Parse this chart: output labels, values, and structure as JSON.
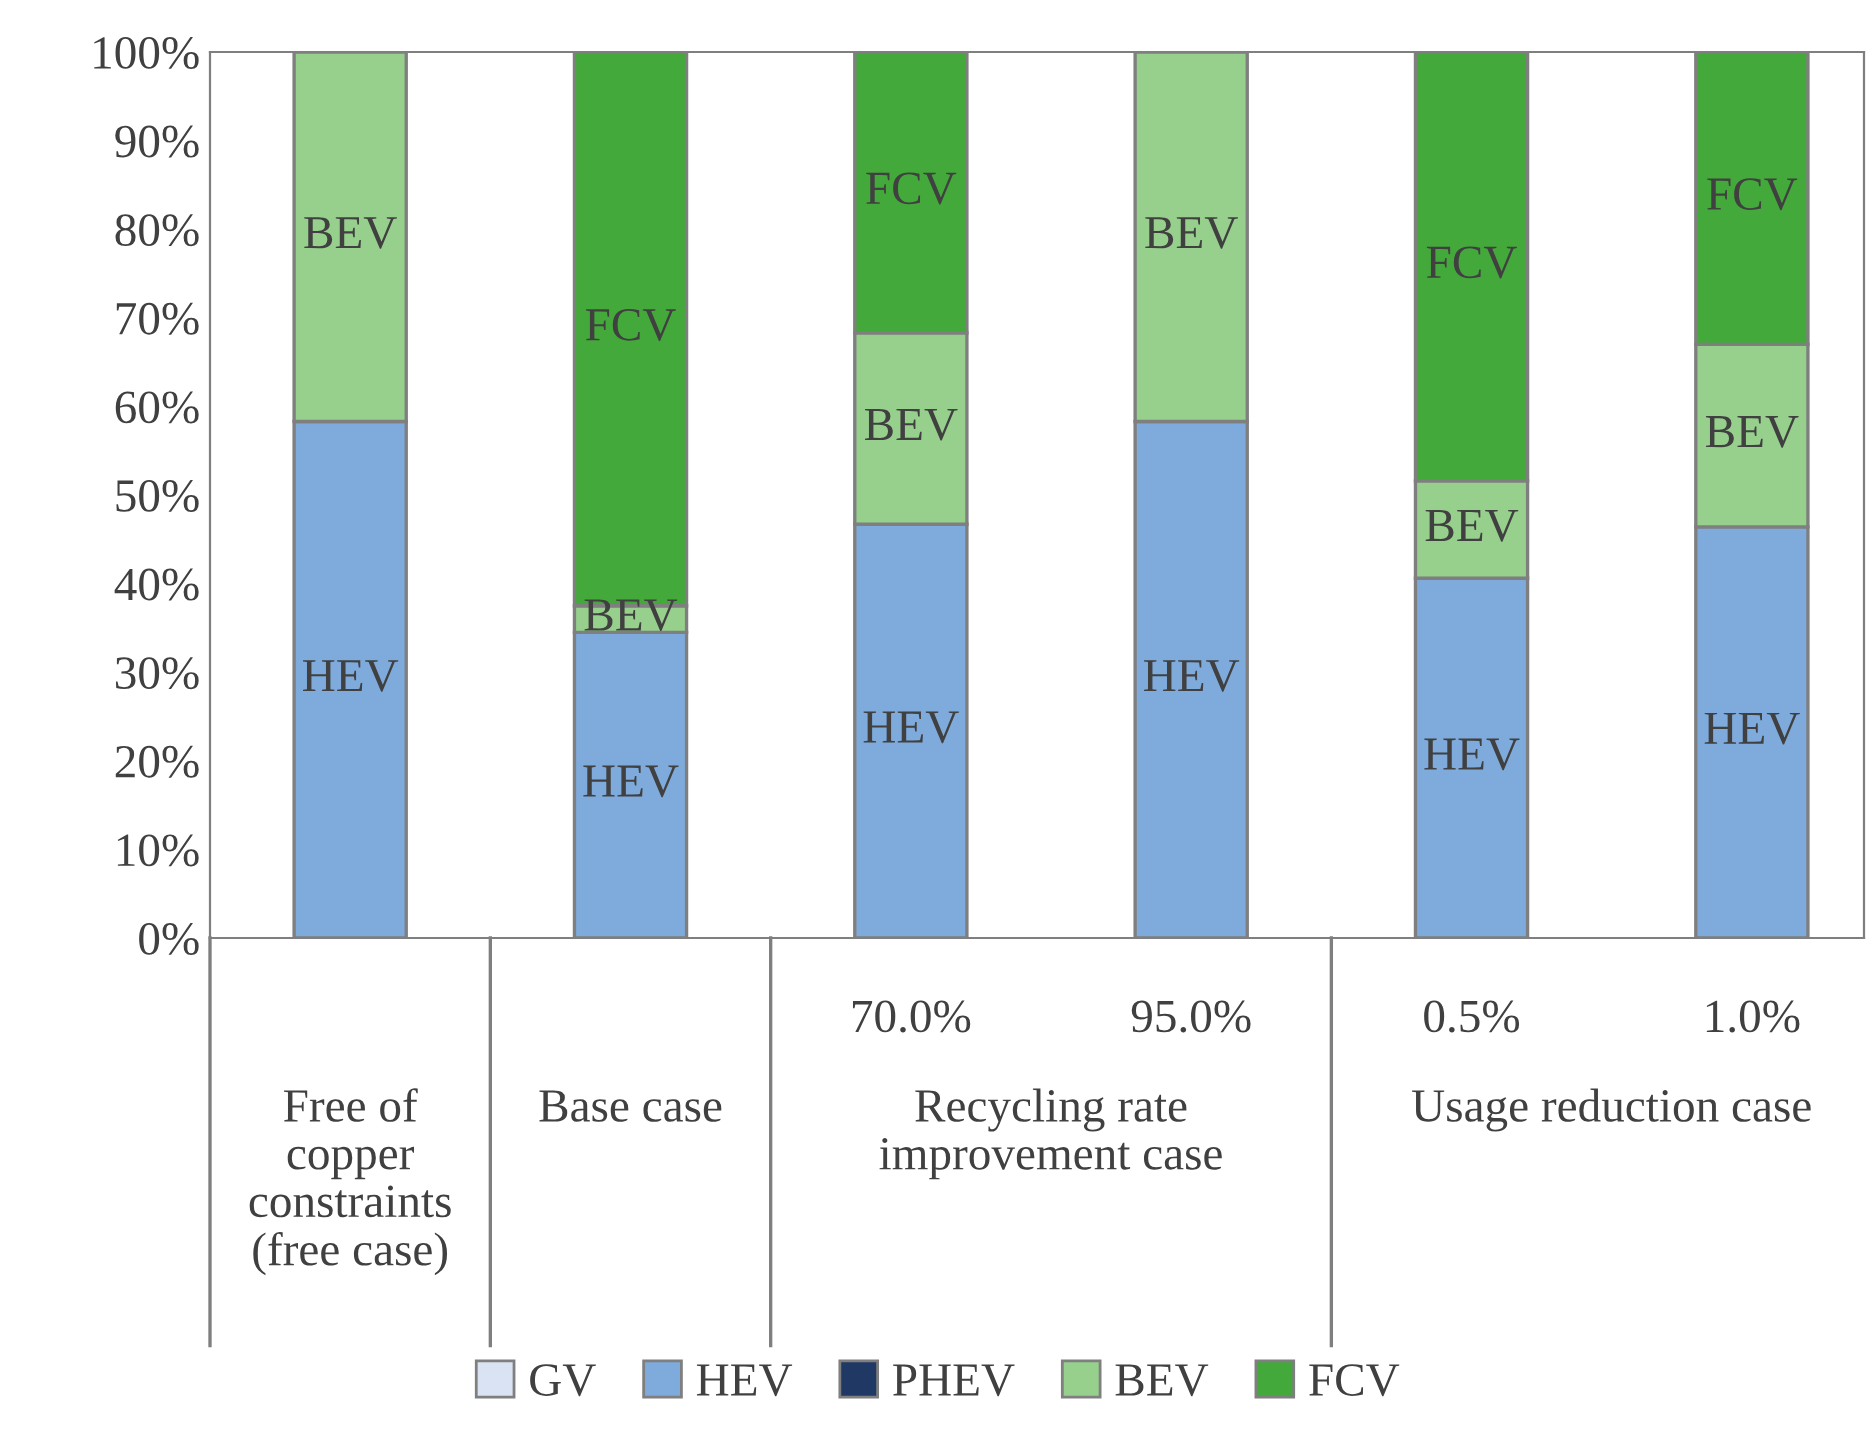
{
  "chart_data": {
    "type": "bar",
    "stacked": true,
    "categories": [
      null,
      null,
      "70.0%",
      "95.0%",
      "0.5%",
      "1.0%"
    ],
    "series": [
      {
        "name": "GV",
        "color": "#dae3f3",
        "values": [
          0,
          0,
          0,
          0,
          0,
          0
        ]
      },
      {
        "name": "HEV",
        "color": "#7eaadc",
        "values": [
          58.3,
          34.5,
          46.7,
          58.3,
          40.6,
          46.4
        ]
      },
      {
        "name": "PHEV",
        "color": "#1f3864",
        "values": [
          0,
          0,
          0,
          0,
          0,
          0
        ]
      },
      {
        "name": "BEV",
        "color": "#96d08c",
        "values": [
          41.7,
          3,
          21.6,
          41.7,
          11,
          20.6
        ]
      },
      {
        "name": "FCV",
        "color": "#44a93b",
        "values": [
          0,
          62.5,
          31.7,
          0,
          48.4,
          33
        ]
      }
    ],
    "ylim": [
      0,
      100
    ],
    "yticks": [
      {
        "value": 0,
        "label": "0%"
      },
      {
        "value": 10,
        "label": "10%"
      },
      {
        "value": 20,
        "label": "20%"
      },
      {
        "value": 30,
        "label": "30%"
      },
      {
        "value": 40,
        "label": "40%"
      },
      {
        "value": 50,
        "label": "50%"
      },
      {
        "value": 60,
        "label": "60%"
      },
      {
        "value": 70,
        "label": "70%"
      },
      {
        "value": 80,
        "label": "80%"
      },
      {
        "value": 90,
        "label": "90%"
      },
      {
        "value": 100,
        "label": "100%"
      }
    ],
    "annotations": [
      "Free of\ncopper\nconstraints\n(free case)",
      "Base case",
      "Recycling rate\nimprovement case",
      "Usage reduction case"
    ],
    "grid": false,
    "legend": "bottom"
  }
}
